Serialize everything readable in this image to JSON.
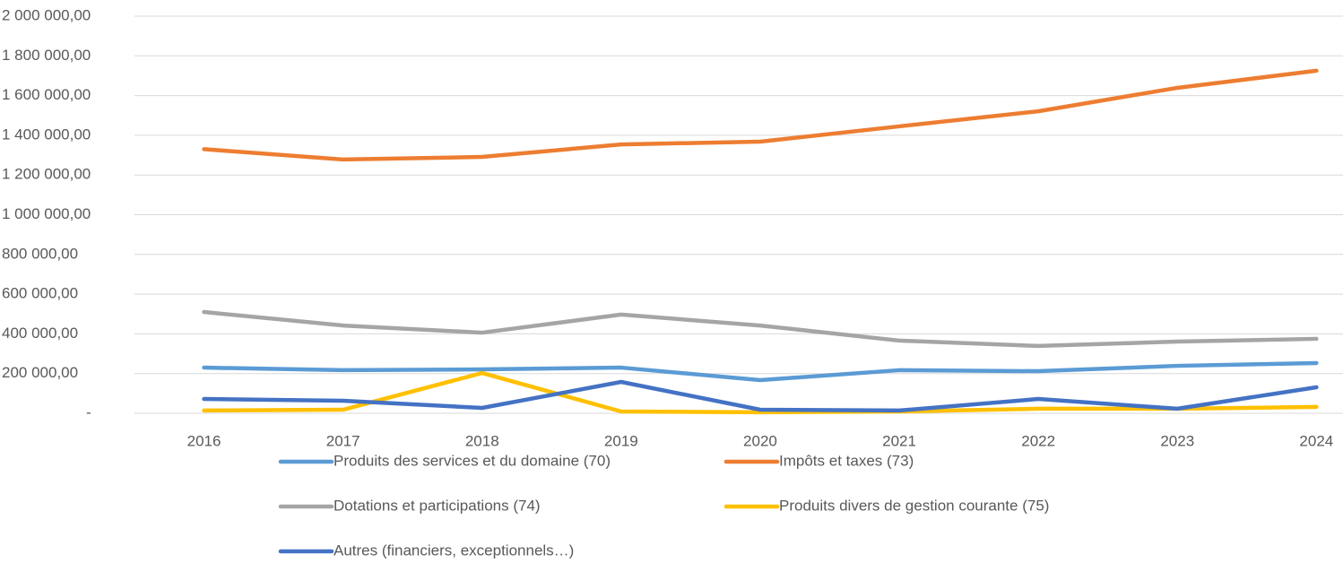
{
  "chart_data": {
    "type": "line",
    "categories": [
      "2016",
      "2017",
      "2018",
      "2019",
      "2020",
      "2021",
      "2022",
      "2023",
      "2024"
    ],
    "series": [
      {
        "name": "Produits des services et du domaine (70)",
        "color": "#5b9bd5",
        "values": [
          230000,
          217000,
          221000,
          230000,
          167000,
          217000,
          212000,
          239000,
          253000
        ]
      },
      {
        "name": "Impôts et taxes (73)",
        "color": "#ed7d31",
        "values": [
          1330000,
          1278000,
          1291000,
          1354000,
          1368000,
          1445000,
          1521000,
          1639000,
          1725000
        ]
      },
      {
        "name": "Dotations et participations (74)",
        "color": "#a5a5a5",
        "values": [
          510000,
          442000,
          406000,
          497000,
          442000,
          366000,
          339000,
          361000,
          375000
        ]
      },
      {
        "name": "Produits divers de gestion courante (75)",
        "color": "#ffc000",
        "values": [
          14000,
          18000,
          203000,
          9000,
          5000,
          9000,
          23000,
          23000,
          32000
        ]
      },
      {
        "name": "Autres (financiers, exceptionnels…)",
        "color": "#4472c4",
        "values": [
          72000,
          63000,
          27000,
          158000,
          18000,
          14000,
          72000,
          23000,
          131000
        ]
      }
    ],
    "ylim": [
      0,
      2000000
    ],
    "yticks": [
      {
        "value": 0,
        "label": "-"
      },
      {
        "value": 200000,
        "label": "200 000,00"
      },
      {
        "value": 400000,
        "label": "400 000,00"
      },
      {
        "value": 600000,
        "label": "600 000,00"
      },
      {
        "value": 800000,
        "label": "800 000,00"
      },
      {
        "value": 1000000,
        "label": "1 000 000,00"
      },
      {
        "value": 1200000,
        "label": "1 200 000,00"
      },
      {
        "value": 1400000,
        "label": "1 400 000,00"
      },
      {
        "value": 1600000,
        "label": "1 600 000,00"
      },
      {
        "value": 1800000,
        "label": "1 800 000,00"
      },
      {
        "value": 2000000,
        "label": "2 000 000,00"
      }
    ],
    "grid": true
  }
}
